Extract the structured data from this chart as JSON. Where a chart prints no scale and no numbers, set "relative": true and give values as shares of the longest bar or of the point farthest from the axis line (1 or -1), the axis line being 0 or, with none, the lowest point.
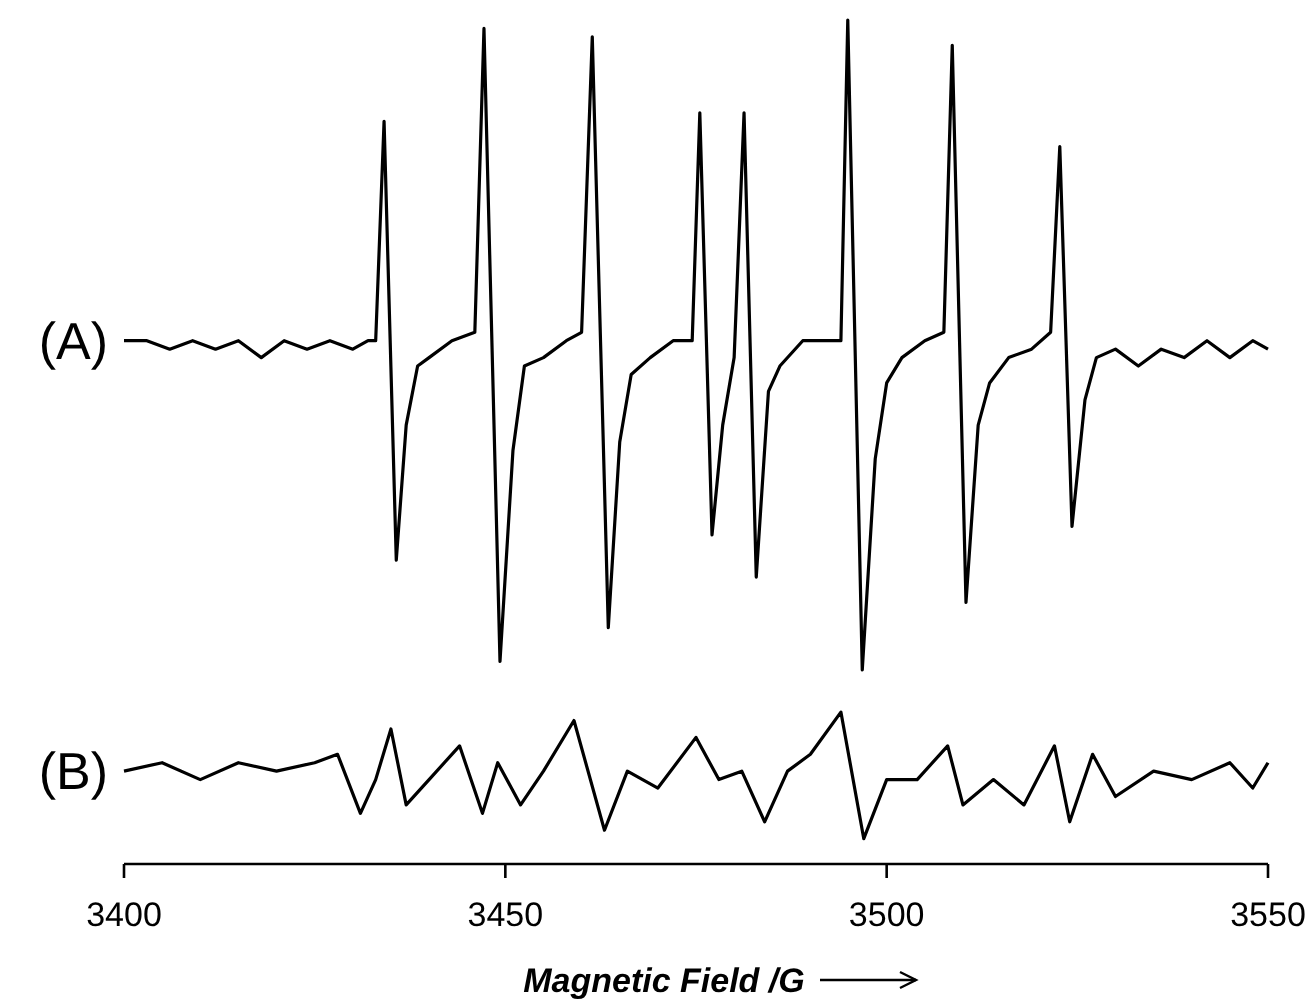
{
  "chart_data": {
    "type": "line",
    "relative": true,
    "xlim": [
      3400,
      3550
    ],
    "xticks": [
      3400,
      3450,
      3500,
      3550
    ],
    "xlabel": "Magnetic Field /G",
    "series": [
      {
        "name": "(A)",
        "color": "#000000",
        "x": [
          3400,
          3403,
          3406,
          3409,
          3412,
          3415,
          3418,
          3421,
          3424,
          3427,
          3430,
          3432,
          3433,
          3434.1,
          3435.7,
          3437,
          3438.5,
          3440,
          3443,
          3446,
          3447.2,
          3449.3,
          3451,
          3452.5,
          3455,
          3458,
          3460,
          3461.4,
          3463.5,
          3465,
          3466.5,
          3469,
          3472,
          3474.5,
          3475.5,
          3477.1,
          3478.5,
          3480,
          3481.3,
          3482.9,
          3484.5,
          3486,
          3489,
          3492,
          3494,
          3494.9,
          3496.8,
          3498.5,
          3500,
          3502,
          3505,
          3507.5,
          3508.6,
          3510.4,
          3512,
          3513.5,
          3516,
          3519,
          3521.5,
          3522.7,
          3524.3,
          3526,
          3527.5,
          3530,
          3533,
          3536,
          3539,
          3542,
          3545,
          3548,
          3550
        ],
        "values": [
          0.62,
          0.62,
          0.61,
          0.62,
          0.61,
          0.62,
          0.6,
          0.62,
          0.61,
          0.62,
          0.61,
          0.62,
          0.62,
          0.88,
          0.36,
          0.52,
          0.59,
          0.6,
          0.62,
          0.63,
          0.99,
          0.24,
          0.49,
          0.59,
          0.6,
          0.62,
          0.63,
          0.98,
          0.28,
          0.5,
          0.58,
          0.6,
          0.62,
          0.62,
          0.89,
          0.39,
          0.52,
          0.6,
          0.89,
          0.34,
          0.56,
          0.59,
          0.62,
          0.62,
          0.62,
          1,
          0.23,
          0.48,
          0.57,
          0.6,
          0.62,
          0.63,
          0.97,
          0.31,
          0.52,
          0.57,
          0.6,
          0.61,
          0.63,
          0.85,
          0.4,
          0.55,
          0.6,
          0.61,
          0.59,
          0.61,
          0.6,
          0.62,
          0.6,
          0.62,
          0.61
        ]
      },
      {
        "name": "(B)",
        "color": "#000000",
        "x": [
          3400,
          3405,
          3410,
          3415,
          3420,
          3425,
          3428,
          3431,
          3433,
          3435,
          3437,
          3440,
          3444,
          3447,
          3449,
          3452,
          3455,
          3459,
          3463,
          3466,
          3470,
          3475,
          3478,
          3481,
          3484,
          3487,
          3490,
          3494,
          3497,
          3500,
          3504,
          3508,
          3510,
          3514,
          3518,
          3522,
          3524,
          3527,
          3530,
          3535,
          3540,
          3545,
          3548,
          3550
        ],
        "values": [
          0.11,
          0.12,
          0.1,
          0.12,
          0.11,
          0.12,
          0.13,
          0.06,
          0.1,
          0.16,
          0.07,
          0.1,
          0.14,
          0.06,
          0.12,
          0.07,
          0.11,
          0.17,
          0.04,
          0.11,
          0.09,
          0.15,
          0.1,
          0.11,
          0.05,
          0.11,
          0.13,
          0.18,
          0.03,
          0.1,
          0.1,
          0.14,
          0.07,
          0.1,
          0.07,
          0.14,
          0.05,
          0.13,
          0.08,
          0.11,
          0.1,
          0.12,
          0.09,
          0.12
        ]
      }
    ]
  }
}
